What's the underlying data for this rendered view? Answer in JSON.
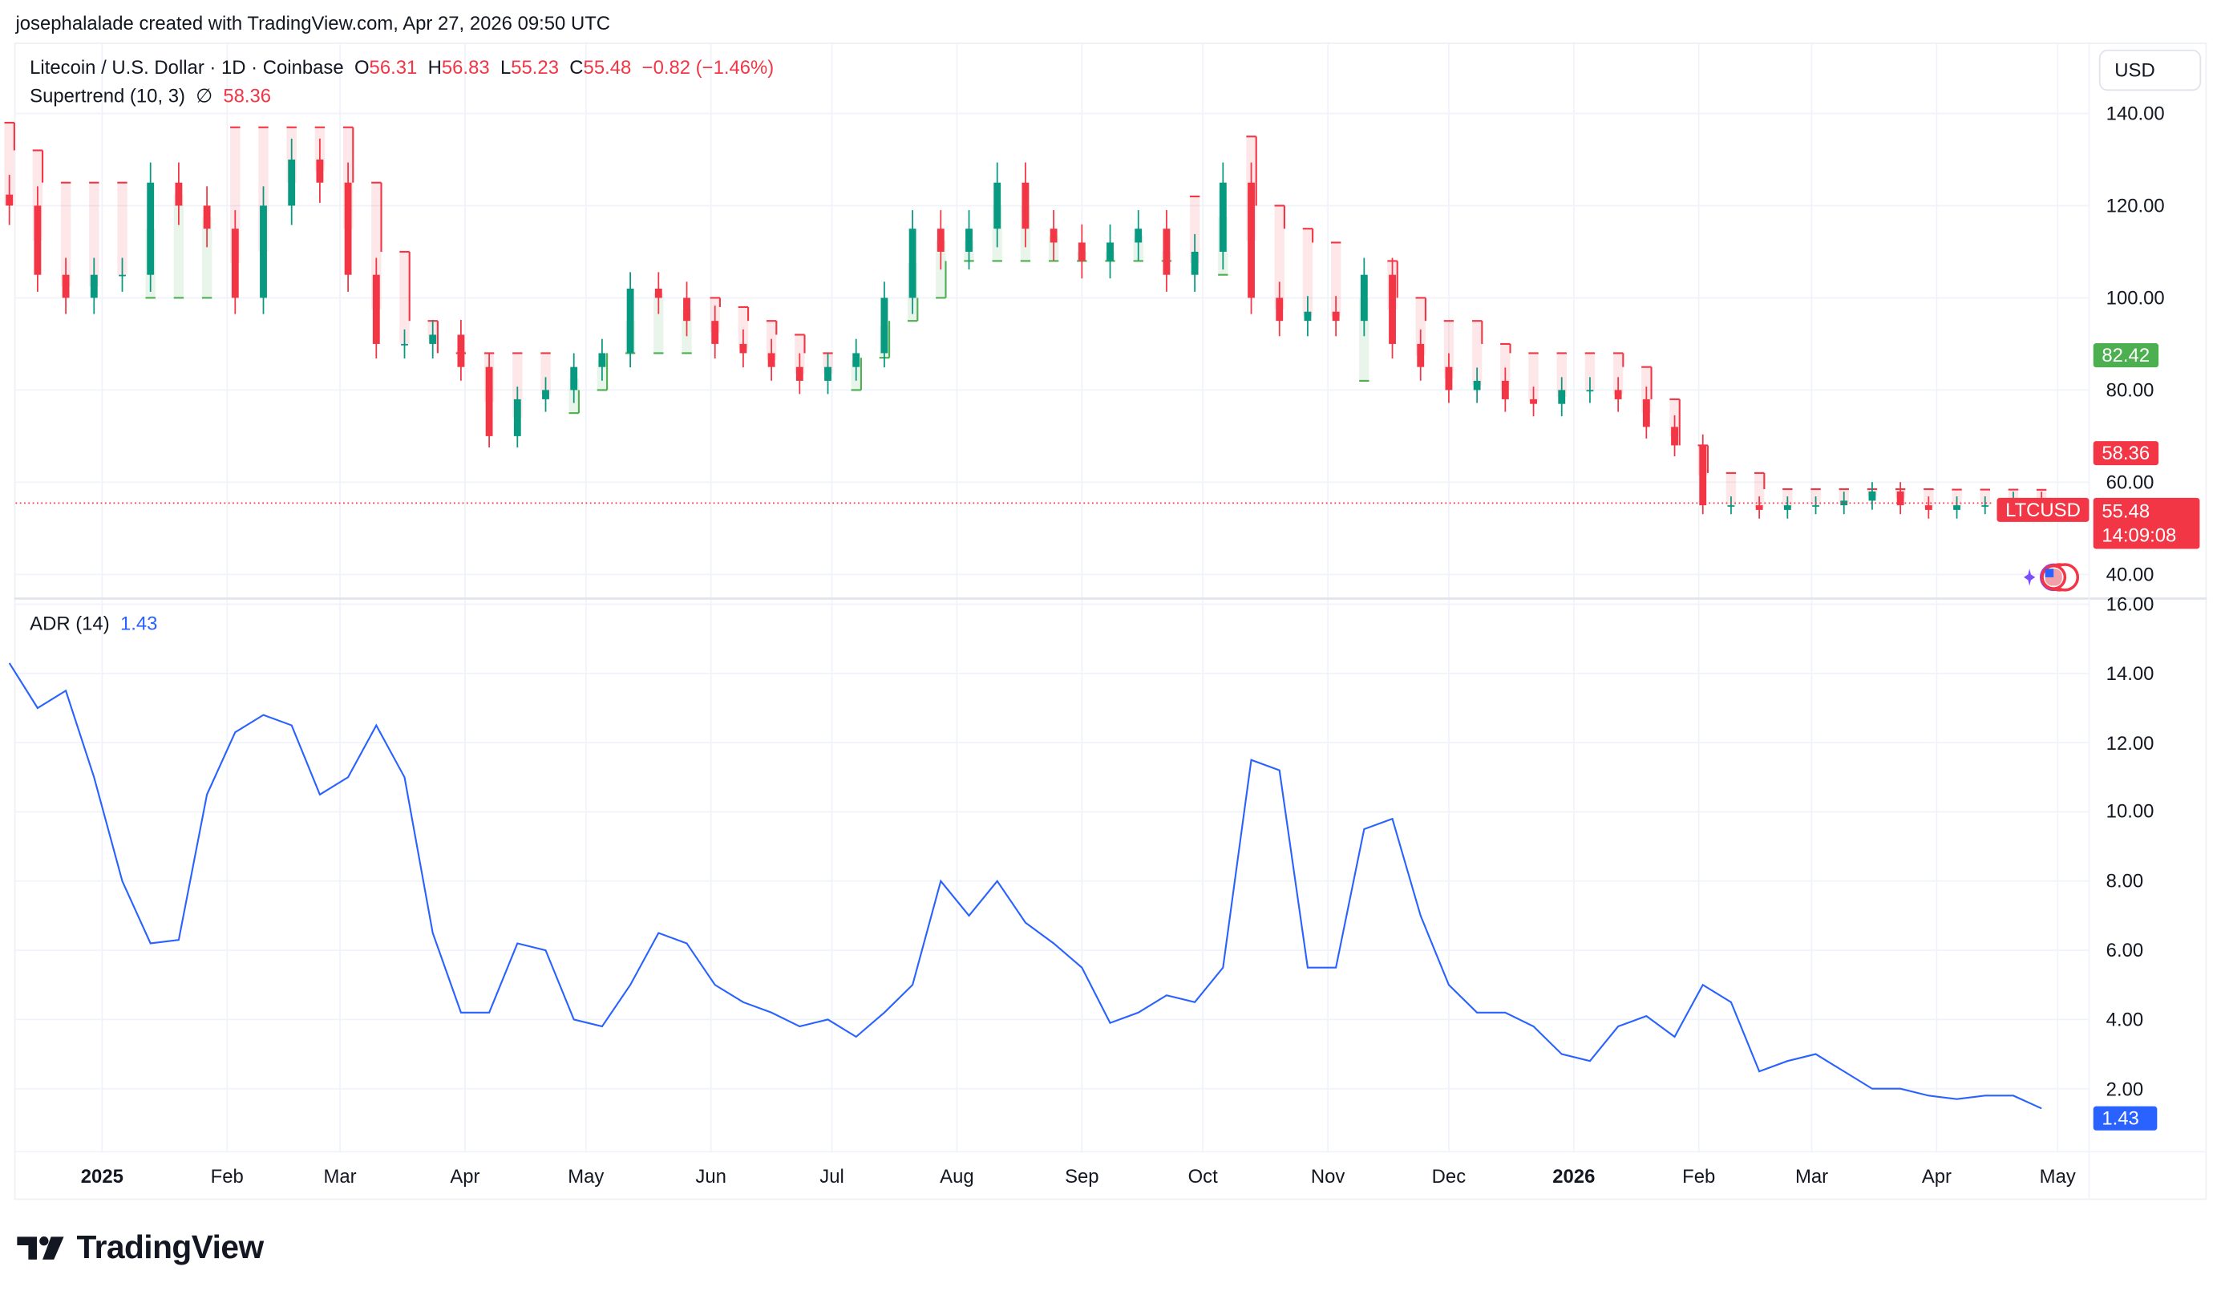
{
  "credit": "josephalalade created with TradingView.com, Apr 27, 2026 09:50 UTC",
  "legend": {
    "symbol": "Litecoin / U.S. Dollar · 1D · Coinbase",
    "o_label": "O",
    "o": "56.31",
    "h_label": "H",
    "h": "56.83",
    "l_label": "L",
    "l": "55.23",
    "c_label": "C",
    "c": "55.48",
    "change": "−0.82 (−1.46%)",
    "supertrend_label": "Supertrend (10, 3)",
    "supertrend_icon": "∅",
    "supertrend_value": "58.36",
    "adr_label": "ADR (14)",
    "adr_value": "1.43"
  },
  "currency_button": "USD",
  "badges": {
    "supertrend_up": "82.42",
    "supertrend_down": "58.36",
    "symbol": "LTCUSD",
    "last_price": "55.48",
    "countdown": "14:09:08",
    "adr": "1.43"
  },
  "colors": {
    "up": "#089981",
    "down": "#f23645",
    "st_up": "#4caf50",
    "st_down": "#f23645",
    "adr": "#2962ff"
  },
  "brand": "TradingView",
  "chart_data": [
    {
      "type": "candlestick",
      "title": "Litecoin / U.S. Dollar · 1D · Coinbase",
      "start": "2024-12-09",
      "interval_days": 7,
      "ylim": [
        35,
        145
      ],
      "yticks": [
        "140.00",
        "120.00",
        "100.00",
        "80.00",
        "60.00",
        "40.00"
      ],
      "ytick_values": [
        140,
        120,
        100,
        80,
        60,
        40
      ],
      "close": [
        120,
        105,
        100,
        105,
        105,
        125,
        120,
        115,
        100,
        120,
        130,
        125,
        105,
        90,
        90,
        92,
        85,
        70,
        78,
        80,
        85,
        88,
        102,
        100,
        95,
        90,
        88,
        85,
        82,
        85,
        88,
        100,
        115,
        110,
        115,
        125,
        115,
        112,
        108,
        112,
        115,
        105,
        110,
        125,
        100,
        95,
        97,
        95,
        105,
        90,
        85,
        80,
        82,
        78,
        77,
        80,
        80,
        78,
        72,
        68,
        55,
        55,
        54,
        55,
        55,
        56,
        58,
        55,
        54,
        55,
        55,
        56,
        55.48
      ],
      "supertrend": {
        "name": "Supertrend (10, 3)",
        "values": [
          138,
          132,
          125,
          125,
          125,
          100,
          100,
          100,
          137,
          137,
          137,
          137,
          137,
          125,
          110,
          95,
          88,
          88,
          88,
          88,
          75,
          80,
          88,
          88,
          88,
          100,
          98,
          95,
          92,
          88,
          80,
          87,
          95,
          100,
          108,
          108,
          108,
          108,
          108,
          108,
          108,
          108,
          122,
          105,
          135,
          120,
          115,
          112,
          82,
          108,
          100,
          95,
          95,
          90,
          88,
          88,
          88,
          88,
          85,
          78,
          68,
          62,
          62,
          58.5,
          58.5,
          58.5,
          58.5,
          58.5,
          58.5,
          58.4,
          58.4,
          58.4,
          58.36
        ],
        "direction": [
          -1,
          -1,
          -1,
          -1,
          -1,
          1,
          1,
          1,
          -1,
          -1,
          -1,
          -1,
          -1,
          -1,
          -1,
          -1,
          -1,
          -1,
          -1,
          -1,
          1,
          1,
          1,
          1,
          1,
          -1,
          -1,
          -1,
          -1,
          -1,
          1,
          1,
          1,
          1,
          1,
          1,
          1,
          1,
          1,
          1,
          1,
          1,
          -1,
          1,
          -1,
          -1,
          -1,
          -1,
          1,
          -1,
          -1,
          -1,
          -1,
          -1,
          -1,
          -1,
          -1,
          -1,
          -1,
          -1,
          -1,
          -1,
          -1,
          -1,
          -1,
          -1,
          -1,
          -1,
          -1,
          -1,
          -1,
          -1,
          -1
        ]
      }
    },
    {
      "type": "line",
      "title": "ADR (14)",
      "ylim": [
        0.5,
        16
      ],
      "yticks": [
        "16.00",
        "14.00",
        "12.00",
        "10.00",
        "8.00",
        "6.00",
        "4.00",
        "2.00"
      ],
      "ytick_values": [
        16,
        14,
        12,
        10,
        8,
        6,
        4,
        2
      ],
      "values": [
        14.3,
        13,
        13.5,
        11,
        8,
        6.2,
        6.3,
        10.5,
        12.3,
        12.8,
        12.5,
        10.5,
        11,
        12.5,
        11,
        6.5,
        4.2,
        4.2,
        6.2,
        6,
        4,
        3.8,
        5,
        6.5,
        6.2,
        5,
        4.5,
        4.2,
        3.8,
        4,
        3.5,
        4.2,
        5,
        8,
        7,
        8,
        6.8,
        6.2,
        5.5,
        3.9,
        4.2,
        4.7,
        4.5,
        5.5,
        11.5,
        11.2,
        5.5,
        5.5,
        9.5,
        9.8,
        7,
        5,
        4.2,
        4.2,
        3.8,
        3,
        2.8,
        3.8,
        4.1,
        3.5,
        5,
        4.5,
        2.5,
        2.8,
        3,
        2.5,
        2,
        2,
        1.8,
        1.7,
        1.8,
        1.8,
        1.43
      ]
    }
  ],
  "xaxis": {
    "labels": [
      "2025",
      "Feb",
      "Mar",
      "Apr",
      "May",
      "Jun",
      "Jul",
      "Aug",
      "Sep",
      "Oct",
      "Nov",
      "Dec",
      "2026",
      "Feb",
      "Mar",
      "Apr",
      "May"
    ],
    "bold": [
      true,
      false,
      false,
      false,
      false,
      false,
      false,
      false,
      false,
      false,
      false,
      false,
      true,
      false,
      false,
      false,
      false
    ],
    "days_from_2025_01_01": [
      0,
      31,
      59,
      90,
      120,
      151,
      181,
      212,
      243,
      273,
      304,
      334,
      365,
      396,
      424,
      455,
      485
    ]
  }
}
